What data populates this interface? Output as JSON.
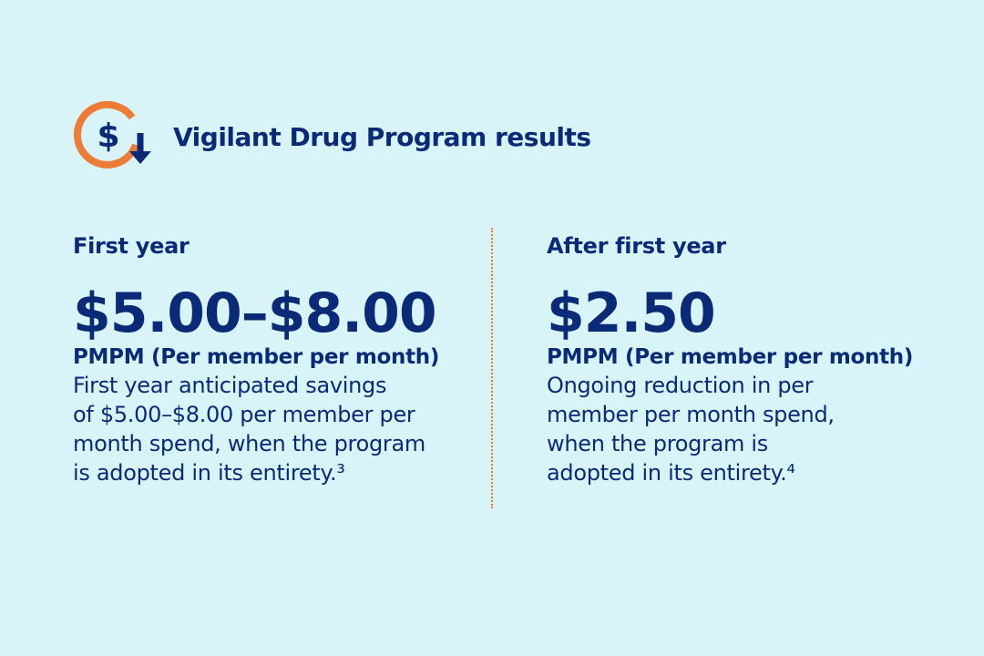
{
  "header": {
    "title": "Vigilant Drug Program results",
    "icon": "dollar-down-arrow-icon"
  },
  "colors": {
    "background": "#d8f4f8",
    "text": "#0a2a78",
    "accent": "#ee7b36"
  },
  "columns": [
    {
      "label": "First year",
      "value": "$5.00–$8.00",
      "unit": "PMPM (Per member per month)",
      "description_lines": [
        "First year anticipated savings",
        "of $5.00–$8.00 per member per",
        "month spend, when the program",
        "is adopted in its entirety.³"
      ]
    },
    {
      "label": "After first year",
      "value": "$2.50",
      "unit": "PMPM (Per member per month)",
      "description_lines": [
        "Ongoing reduction in per",
        "member per month spend,",
        "when the program is",
        "adopted in its entirety.⁴"
      ]
    }
  ]
}
